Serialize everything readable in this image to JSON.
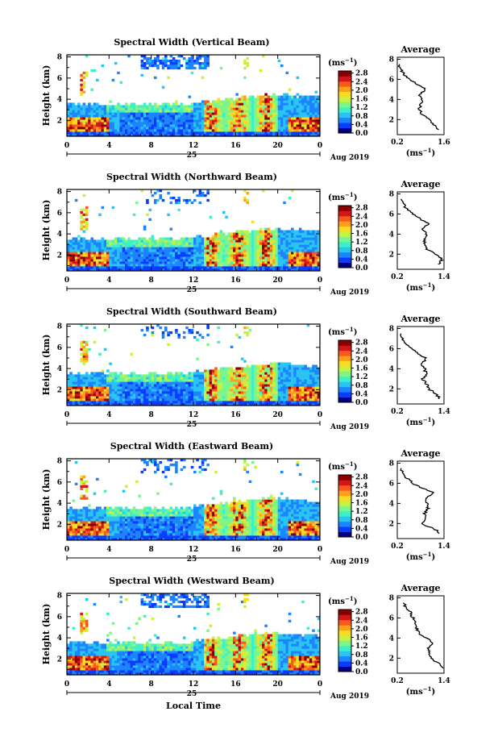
{
  "figure": {
    "xlabel": "Local Time",
    "date_label": "Aug 2019",
    "day_label": "25",
    "ylabel": "Height (km)",
    "unit_label": "(ms",
    "unit_exp": "−1",
    "avg_title": "Average"
  },
  "colormap": [
    "#000080",
    "#0a3cff",
    "#1d84ff",
    "#29c5f0",
    "#3ef0c8",
    "#7ef58a",
    "#c6f246",
    "#f8dc22",
    "#ff9f1c",
    "#f75a1a",
    "#d2161a",
    "#8a0000"
  ],
  "chart_data": [
    {
      "type": "heatmap",
      "title": "Spectral Width (Vertical Beam)",
      "xlabel": "Local Time",
      "ylabel": "Height (km)",
      "x_ticks": [
        "0",
        "4",
        "8",
        "12",
        "16",
        "20",
        "0"
      ],
      "y_ticks": [
        "2",
        "4",
        "6",
        "8"
      ],
      "xlim": [
        0,
        24
      ],
      "ylim": [
        0.5,
        8.2
      ],
      "colorbar": {
        "label": "(ms−1)",
        "ticks": [
          "0.0",
          "0.4",
          "0.8",
          "1.2",
          "1.6",
          "2.0",
          "2.4",
          "2.8"
        ],
        "range": [
          0.0,
          2.9
        ]
      },
      "average_profile": {
        "title": "Average",
        "x_ticks": [
          "0.2",
          "1.6"
        ],
        "xlim": [
          0.2,
          1.6
        ],
        "y_ticks": [
          "2",
          "4",
          "6",
          "8"
        ],
        "xlabel": "(ms−1)",
        "height_km": [
          1.0,
          1.5,
          2.0,
          2.5,
          3.0,
          3.5,
          4.0,
          4.5,
          5.0,
          5.5,
          6.0,
          6.5,
          7.0,
          7.5
        ],
        "width_ms": [
          1.45,
          1.3,
          1.15,
          0.95,
          0.85,
          0.9,
          0.95,
          0.85,
          1.05,
          0.8,
          0.55,
          0.4,
          0.3,
          0.25
        ]
      }
    },
    {
      "type": "heatmap",
      "title": "Spectral Width (Northward Beam)",
      "xlabel": "Local Time",
      "ylabel": "Height (km)",
      "x_ticks": [
        "0",
        "4",
        "8",
        "12",
        "16",
        "20",
        "0"
      ],
      "y_ticks": [
        "2",
        "4",
        "6",
        "8"
      ],
      "xlim": [
        0,
        24
      ],
      "ylim": [
        0.5,
        8.2
      ],
      "colorbar": {
        "label": "(ms−1)",
        "ticks": [
          "0.0",
          "0.4",
          "0.8",
          "1.2",
          "1.6",
          "2.0",
          "2.4",
          "2.8"
        ],
        "range": [
          0.0,
          2.9
        ]
      },
      "average_profile": {
        "title": "Average",
        "x_ticks": [
          "0.2",
          "1.4"
        ],
        "xlim": [
          0.2,
          1.4
        ],
        "y_ticks": [
          "2",
          "4",
          "6",
          "8"
        ],
        "xlabel": "(ms−1)",
        "height_km": [
          1.0,
          1.5,
          2.0,
          2.5,
          3.0,
          3.5,
          4.0,
          4.5,
          5.0,
          5.5,
          6.0,
          6.5,
          7.0,
          7.5
        ],
        "width_ms": [
          1.25,
          1.35,
          1.2,
          0.95,
          0.9,
          0.9,
          0.95,
          0.85,
          1.0,
          0.8,
          0.6,
          0.45,
          0.35,
          0.3
        ]
      }
    },
    {
      "type": "heatmap",
      "title": "Spectral Width (Southward Beam)",
      "xlabel": "Local Time",
      "ylabel": "Height (km)",
      "x_ticks": [
        "0",
        "4",
        "8",
        "12",
        "16",
        "20",
        "0"
      ],
      "y_ticks": [
        "2",
        "4",
        "6",
        "8"
      ],
      "xlim": [
        0,
        24
      ],
      "ylim": [
        0.5,
        8.2
      ],
      "colorbar": {
        "label": "(ms−1)",
        "ticks": [
          "0.0",
          "0.4",
          "0.8",
          "1.2",
          "1.6",
          "2.0",
          "2.4",
          "2.8"
        ],
        "range": [
          0.0,
          2.9
        ]
      },
      "average_profile": {
        "title": "Average",
        "x_ticks": [
          "0.2",
          "1.4"
        ],
        "xlim": [
          0.2,
          1.4
        ],
        "y_ticks": [
          "2",
          "4",
          "6",
          "8"
        ],
        "xlabel": "(ms−1)",
        "height_km": [
          1.0,
          1.5,
          2.0,
          2.5,
          3.0,
          3.5,
          4.0,
          4.5,
          5.0,
          5.5,
          6.0,
          6.5,
          7.0,
          7.5
        ],
        "width_ms": [
          1.3,
          1.2,
          1.0,
          0.95,
          0.85,
          0.95,
          0.9,
          0.8,
          0.95,
          0.75,
          0.55,
          0.4,
          0.35,
          0.3
        ]
      }
    },
    {
      "type": "heatmap",
      "title": "Spectral Width (Eastward Beam)",
      "xlabel": "Local Time",
      "ylabel": "Height (km)",
      "x_ticks": [
        "0",
        "4",
        "8",
        "12",
        "16",
        "20",
        "0"
      ],
      "y_ticks": [
        "2",
        "4",
        "6",
        "8"
      ],
      "xlim": [
        0,
        24
      ],
      "ylim": [
        0.5,
        8.2
      ],
      "colorbar": {
        "label": "(ms−1)",
        "ticks": [
          "0.0",
          "0.4",
          "0.8",
          "1.2",
          "1.6",
          "2.0",
          "2.4",
          "2.8"
        ],
        "range": [
          0.0,
          2.9
        ]
      },
      "average_profile": {
        "title": "Average",
        "x_ticks": [
          "0.2",
          "1.4"
        ],
        "xlim": [
          0.2,
          1.4
        ],
        "y_ticks": [
          "2",
          "4",
          "6",
          "8"
        ],
        "xlabel": "(ms−1)",
        "height_km": [
          1.0,
          1.5,
          2.0,
          2.5,
          3.0,
          3.5,
          4.0,
          4.5,
          5.0,
          5.5,
          6.0,
          6.5,
          7.0,
          7.5
        ],
        "width_ms": [
          1.3,
          1.15,
          0.8,
          0.95,
          0.9,
          1.0,
          0.95,
          0.9,
          1.15,
          0.85,
          0.6,
          0.45,
          0.35,
          0.3
        ]
      }
    },
    {
      "type": "heatmap",
      "title": "Spectral Width (Westward Beam)",
      "xlabel": "Local Time",
      "ylabel": "Height (km)",
      "x_ticks": [
        "0",
        "4",
        "8",
        "12",
        "16",
        "20",
        "0"
      ],
      "y_ticks": [
        "2",
        "4",
        "6",
        "8"
      ],
      "xlim": [
        0,
        24
      ],
      "ylim": [
        0.5,
        8.2
      ],
      "colorbar": {
        "label": "(ms−1)",
        "ticks": [
          "0.0",
          "0.4",
          "0.8",
          "1.2",
          "1.6",
          "2.0",
          "2.4",
          "2.8"
        ],
        "range": [
          0.0,
          2.9
        ]
      },
      "average_profile": {
        "title": "Average",
        "x_ticks": [
          "0.2",
          "1.4"
        ],
        "xlim": [
          0.2,
          1.4
        ],
        "y_ticks": [
          "2",
          "4",
          "6",
          "8"
        ],
        "xlabel": "(ms−1)",
        "height_km": [
          1.0,
          1.5,
          2.0,
          2.5,
          3.0,
          3.5,
          4.0,
          4.5,
          5.0,
          5.5,
          6.0,
          6.5,
          7.0,
          7.5
        ],
        "width_ms": [
          1.35,
          1.25,
          1.05,
          1.0,
          1.0,
          1.1,
          0.95,
          0.75,
          0.7,
          0.65,
          0.6,
          0.55,
          0.45,
          0.35
        ]
      }
    }
  ]
}
